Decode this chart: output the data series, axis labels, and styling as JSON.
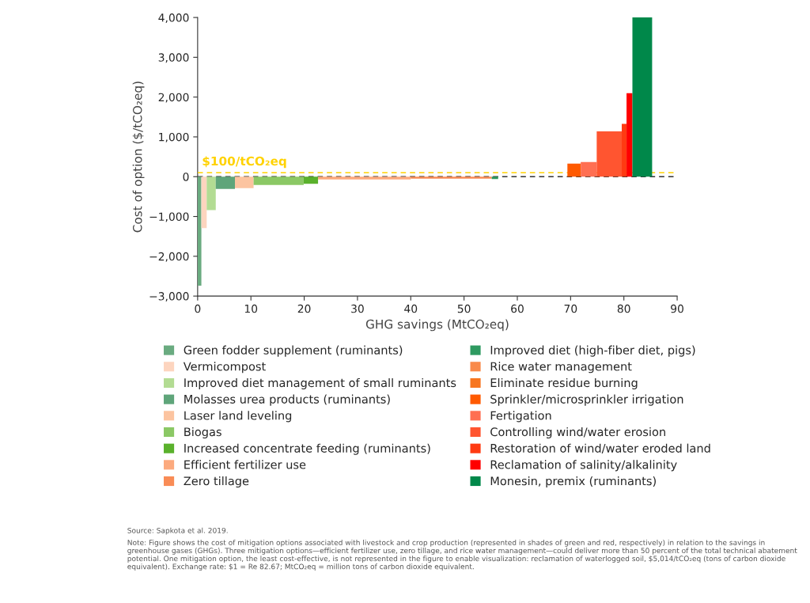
{
  "chart_data": {
    "type": "area",
    "xlabel": "GHG savings (MtCO₂eq)",
    "ylabel": "Cost of option ($/tCO₂eq)",
    "xlim": [
      0,
      90
    ],
    "xticks": [
      0,
      10,
      20,
      30,
      40,
      50,
      60,
      70,
      80,
      90
    ],
    "ylim": [
      -3000,
      4000
    ],
    "yticks": [
      {
        "value": -3000,
        "label": "−3,000"
      },
      {
        "value": -2000,
        "label": "−2,000"
      },
      {
        "value": -1000,
        "label": "−1,000"
      },
      0,
      {
        "value": 1000,
        "label": "1,000"
      },
      {
        "value": 2000,
        "label": "2,000"
      },
      {
        "value": 3000,
        "label": "3,000"
      },
      {
        "value": 4000,
        "label": "4,000"
      }
    ],
    "grid": false,
    "legend": "bottom",
    "ref_lines": [
      {
        "axis": "y",
        "value": 100,
        "label": "$100/tCO₂eq",
        "color": "#ffd200",
        "line_style": "dashed"
      },
      {
        "axis": "y",
        "value": 0,
        "color": "#333333",
        "line_style": "dashed"
      }
    ],
    "series": [
      {
        "name": "Green fodder supplement (ruminants)",
        "color": "#6aab80",
        "x": [
          0,
          0.7
        ],
        "values": [
          -2740,
          -2740
        ]
      },
      {
        "name": "Vermicompost",
        "color": "#fdd5bf",
        "x": [
          0.7,
          1.7
        ],
        "values": [
          -1290,
          -1290
        ]
      },
      {
        "name": "Improved diet management of small ruminants",
        "color": "#b3dc93",
        "x": [
          1.7,
          3.4
        ],
        "values": [
          -840,
          -840
        ]
      },
      {
        "name": "Molasses urea products (ruminants)",
        "color": "#5fa57a",
        "x": [
          3.4,
          7.0
        ],
        "values": [
          -310,
          -310
        ]
      },
      {
        "name": "Laser land leveling",
        "color": "#fcc4a0",
        "x": [
          7.0,
          10.5
        ],
        "values": [
          -290,
          -290
        ]
      },
      {
        "name": "Biogas",
        "color": "#8bc865",
        "x": [
          10.5,
          19.9
        ],
        "values": [
          -210,
          -210
        ]
      },
      {
        "name": "Increased concentrate feeding (ruminants)",
        "color": "#5ab12c",
        "x": [
          19.9,
          22.6
        ],
        "values": [
          -180,
          -180
        ]
      },
      {
        "name": "Efficient fertilizer use",
        "color": "#fcaa7e",
        "x": [
          22.6,
          40.0
        ],
        "values": [
          -70,
          -70
        ]
      },
      {
        "name": "Zero tillage",
        "color": "#f98c56",
        "x": [
          40.0,
          55.2
        ],
        "values": [
          -50,
          -50
        ]
      },
      {
        "name": "Improved diet (high-fiber diet, pigs)",
        "color": "#2e9a60",
        "x": [
          55.2,
          56.4
        ],
        "values": [
          -60,
          -60
        ]
      },
      {
        "name": "Rice water management",
        "color": "#f98a4a",
        "values": [
          null
        ]
      },
      {
        "name": "Eliminate residue burning",
        "color": "#f77620",
        "values": [
          null
        ]
      },
      {
        "name": "Sprinkler/microsprinkler irrigation",
        "color": "#ff5a00",
        "x": [
          69.4,
          71.9
        ],
        "values": [
          330,
          330
        ]
      },
      {
        "name": "Fertigation",
        "color": "#ff6f52",
        "x": [
          71.9,
          74.9
        ],
        "values": [
          370,
          370
        ]
      },
      {
        "name": "Controlling wind/water erosion",
        "color": "#ff5530",
        "x": [
          74.9,
          79.6
        ],
        "values": [
          1140,
          1140
        ]
      },
      {
        "name": "Restoration of wind/water eroded land",
        "color": "#ff3a12",
        "x": [
          79.6,
          80.5
        ],
        "values": [
          1330,
          1330
        ]
      },
      {
        "name": "Reclamation of salinity/alkalinity",
        "color": "#ff0000",
        "x": [
          80.5,
          81.6
        ],
        "values": [
          2100,
          2100
        ]
      },
      {
        "name": "Monesin, premix (ruminants)",
        "color": "#00884a",
        "x": [
          81.6,
          85.3
        ],
        "values": [
          4000,
          4000
        ]
      }
    ],
    "annotations": [
      "Source: Sapkota et al. 2019.",
      "Note: Figure shows the cost of mitigation options associated with livestock and crop production (represented in shades of green and red, respectively) in relation to the savings in greenhouse gases (GHGs). Three mitigation options—efficient fertilizer use, zero tillage, and rice water management—could deliver more than 50 percent of the total technical abatement potential. One mitigation option, the least cost-effective, is not represented in the figure to enable visualization: reclamation of waterlogged soil, $5,014/tCO₂eq (tons of carbon dioxide equivalent). Exchange rate: $1 = Re 82.67; MtCO₂eq = million tons of carbon dioxide equivalent."
    ]
  }
}
